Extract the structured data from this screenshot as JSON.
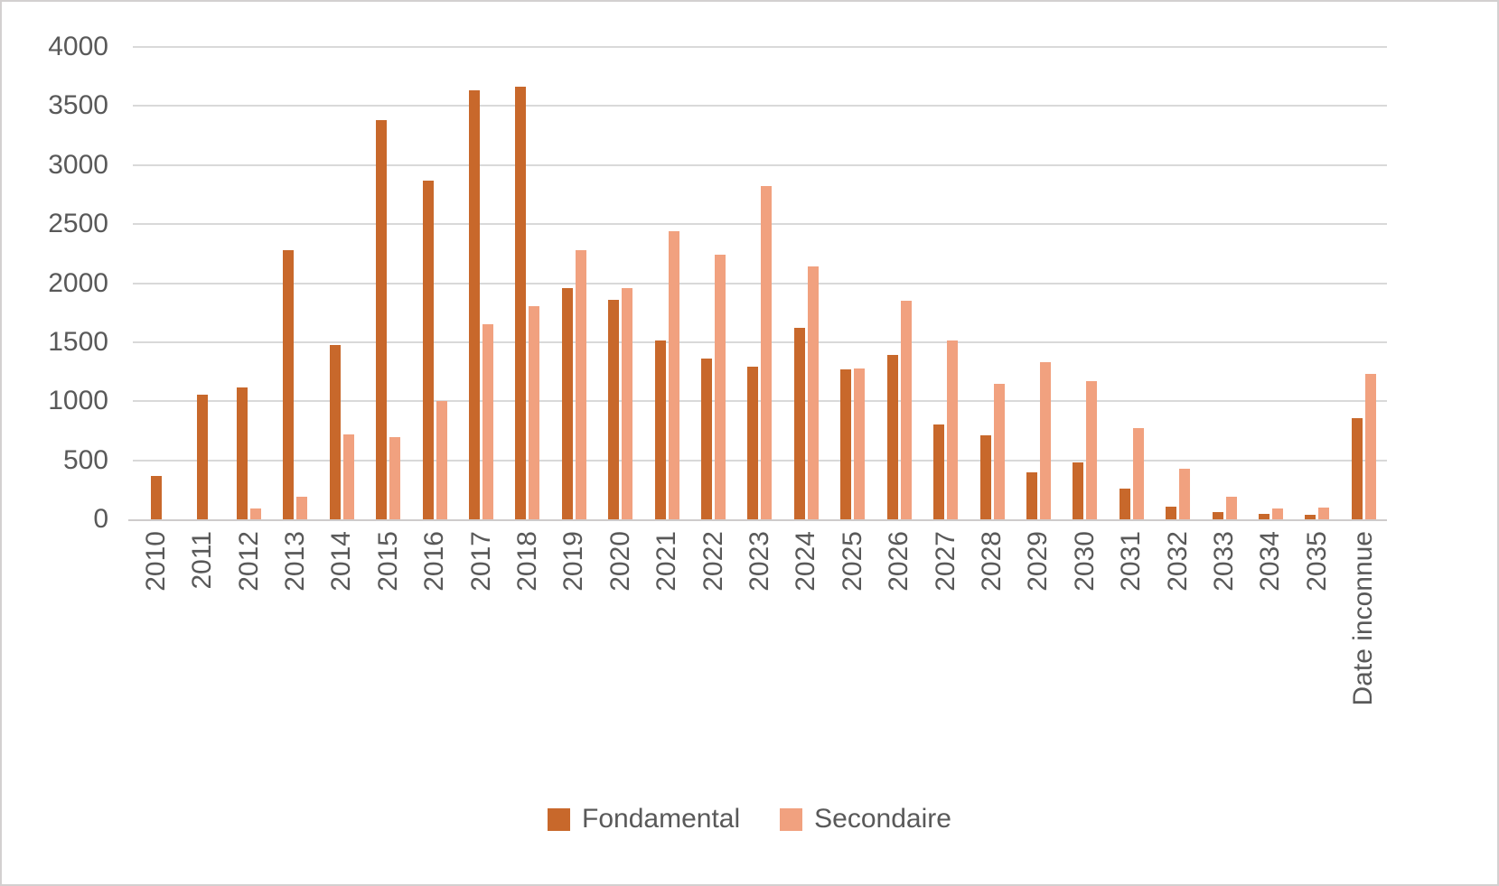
{
  "chart_data": {
    "type": "bar",
    "title": "",
    "categories": [
      "2010",
      "2011",
      "2012",
      "2013",
      "2014",
      "2015",
      "2016",
      "2017",
      "2018",
      "2019",
      "2020",
      "2021",
      "2022",
      "2023",
      "2024",
      "2025",
      "2026",
      "2027",
      "2028",
      "2029",
      "2030",
      "2031",
      "2032",
      "2033",
      "2034",
      "2035",
      "Date inconnue"
    ],
    "series": [
      {
        "name": "Fondamental",
        "color": "#C8682B",
        "values": [
          370,
          1055,
          1120,
          2280,
          1480,
          3380,
          2865,
          3630,
          3660,
          1960,
          1855,
          1515,
          1360,
          1290,
          1620,
          1270,
          1395,
          800,
          710,
          395,
          480,
          260,
          110,
          60,
          45,
          40,
          860
        ]
      },
      {
        "name": "Secondaire",
        "color": "#F1A17F",
        "values": [
          0,
          0,
          90,
          195,
          720,
          695,
          1000,
          1650,
          1805,
          2280,
          1960,
          2440,
          2240,
          2820,
          2140,
          1275,
          1850,
          1515,
          1145,
          1330,
          1170,
          770,
          430,
          195,
          95,
          100,
          1230
        ]
      }
    ],
    "ylabel": "",
    "xlabel": "",
    "ylim": [
      0,
      4000
    ],
    "yticks": [
      0,
      500,
      1000,
      1500,
      2000,
      2500,
      3000,
      3500,
      4000
    ],
    "grid": true,
    "legend_position": "bottom"
  },
  "colors": {
    "fondamental": "#C8682B",
    "secondaire": "#F1A17F",
    "gridline": "#D9D9D9",
    "axis_line": "#CECBCB",
    "text": "#595959",
    "frame_border": "#D3D0D0",
    "background": "#FFFFFF"
  }
}
